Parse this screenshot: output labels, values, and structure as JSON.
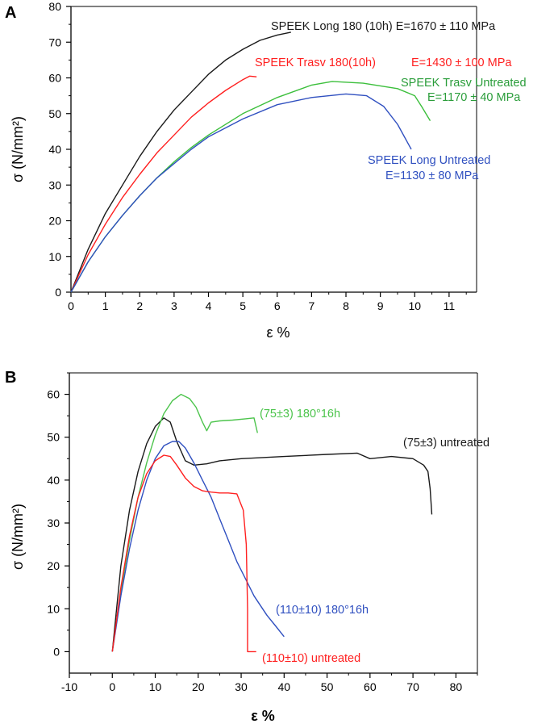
{
  "chart_data": [
    {
      "panel": "A",
      "type": "line",
      "xlabel": "ε %",
      "ylabel": "σ (N/mm²)",
      "xlim": [
        0,
        11.8
      ],
      "ylim": [
        0,
        80
      ],
      "xticks": [
        "0",
        "1",
        "2",
        "3",
        "4",
        "5",
        "6",
        "7",
        "8",
        "9",
        "10",
        "11"
      ],
      "yticks": [
        "0",
        "10",
        "20",
        "30",
        "40",
        "50",
        "60",
        "70",
        "80"
      ],
      "series": [
        {
          "name": "SPEEK Long 180 (10h)",
          "color": "#1a1a1a",
          "x": [
            0,
            0.5,
            1,
            1.5,
            2,
            2.5,
            3,
            3.5,
            4,
            4.5,
            5,
            5.5,
            6,
            6.4
          ],
          "y": [
            0,
            12,
            22,
            30,
            38,
            45,
            51,
            56,
            61,
            65,
            68,
            70.5,
            72,
            72.8
          ]
        },
        {
          "name": "SPEEK Trasv 180(10h)",
          "color": "#ff2020",
          "x": [
            0,
            0.5,
            1,
            1.5,
            2,
            2.5,
            3,
            3.5,
            4,
            4.5,
            5,
            5.2,
            5.4
          ],
          "y": [
            0,
            10.5,
            19,
            26.5,
            33,
            39,
            44,
            49,
            53,
            56.5,
            59.5,
            60.5,
            60.3
          ]
        },
        {
          "name": "SPEEK Trasv Untreated",
          "color": "#3cbf3c",
          "x": [
            0,
            0.5,
            1,
            1.5,
            2,
            2.5,
            3,
            3.5,
            4,
            5,
            6,
            7,
            7.6,
            8.5,
            9.5,
            10,
            10.2,
            10.45
          ],
          "y": [
            0,
            8.5,
            15.5,
            21.5,
            27,
            32,
            36.5,
            40.5,
            44,
            50,
            54.5,
            58,
            59,
            58.5,
            57,
            55,
            52,
            48
          ]
        },
        {
          "name": "SPEEK Long Untreated",
          "color": "#3050c0",
          "x": [
            0,
            0.5,
            1,
            1.5,
            2,
            2.5,
            3,
            3.5,
            4,
            5,
            6,
            7,
            8,
            8.6,
            9.1,
            9.5,
            9.9
          ],
          "y": [
            0,
            8.5,
            15.5,
            21.5,
            27,
            32,
            36,
            40,
            43.5,
            48.5,
            52.5,
            54.5,
            55.5,
            55,
            52,
            47,
            40
          ]
        }
      ],
      "annotations": [
        {
          "name": "Long 180",
          "text": "SPEEK Long 180 (10h) E=1670 ± 110 MPa",
          "color": "#1a1a1a"
        },
        {
          "name": "Trasv 180 title",
          "text": "SPEEK Trasv 180(10h)",
          "color": "#ff2020"
        },
        {
          "name": "Trasv 180 modulus",
          "text": "E=1430 ± 100 MPa",
          "color": "#ff2020"
        },
        {
          "name": "Trasv untreated title",
          "text": "SPEEK Trasv Untreated",
          "color": "#2a9d3a"
        },
        {
          "name": "Trasv untreated modulus",
          "text": "E=1170 ± 40 MPa",
          "color": "#2a9d3a"
        },
        {
          "name": "Long untreated title",
          "text": "SPEEK Long Untreated",
          "color": "#3050c0"
        },
        {
          "name": "Long untreated modulus",
          "text": "E=1130 ± 80 MPa",
          "color": "#3050c0"
        }
      ]
    },
    {
      "panel": "B",
      "type": "line",
      "xlabel": "ε %",
      "ylabel": "σ (N/mm²)",
      "xlim": [
        -10,
        85
      ],
      "ylim": [
        -5,
        65
      ],
      "xticks": [
        "-10",
        "0",
        "10",
        "20",
        "30",
        "40",
        "50",
        "60",
        "70",
        "80"
      ],
      "yticks": [
        "0",
        "10",
        "20",
        "30",
        "40",
        "50",
        "60"
      ],
      "series": [
        {
          "name": "(75±3) untreated",
          "color": "#1a1a1a",
          "x": [
            0,
            2,
            4,
            6,
            8,
            10,
            12,
            13.5,
            15,
            17,
            19,
            22,
            25,
            30,
            40,
            50,
            57,
            60,
            65,
            70,
            72.5,
            73.5,
            74,
            74.4
          ],
          "y": [
            0,
            20,
            33,
            42,
            48.5,
            52.5,
            54.5,
            53.5,
            49,
            44.5,
            43.5,
            43.8,
            44.5,
            45,
            45.5,
            46,
            46.3,
            45,
            45.5,
            45,
            43.5,
            42,
            38,
            32
          ]
        },
        {
          "name": "(75±3) 180°16h",
          "color": "#4cc44c",
          "x": [
            0,
            2,
            4,
            6,
            8,
            10,
            12,
            14,
            16,
            18,
            19.5,
            21,
            22,
            23,
            25,
            28,
            31,
            33,
            33.8
          ],
          "y": [
            0,
            14,
            26,
            36,
            44,
            50.5,
            55.5,
            58.5,
            60,
            59,
            57,
            53.5,
            51.5,
            53.5,
            53.8,
            54,
            54.3,
            54.5,
            51
          ]
        },
        {
          "name": "(110±10) 180°16h",
          "color": "#3050c0",
          "x": [
            0,
            2,
            4,
            6,
            8,
            10,
            12,
            14,
            15.5,
            17,
            19,
            21,
            23,
            25,
            27,
            29,
            31,
            33,
            36,
            38,
            40
          ],
          "y": [
            0,
            13,
            24,
            33,
            40,
            45,
            48,
            49,
            49,
            47.5,
            44,
            40,
            36,
            31,
            26,
            21,
            17,
            13,
            8.5,
            6,
            3.5
          ]
        },
        {
          "name": "(110±10) untreated",
          "color": "#ff2020",
          "x": [
            0,
            2,
            4,
            6,
            8,
            10,
            12,
            13.5,
            15,
            17,
            19,
            21,
            23,
            25,
            27,
            29,
            30.5,
            31.2,
            31.5,
            31.5,
            32.5,
            33.5
          ],
          "y": [
            0,
            15,
            27,
            36,
            41.5,
            44.5,
            45.8,
            45.5,
            43.5,
            40.5,
            38.5,
            37.5,
            37.2,
            37,
            37,
            36.8,
            33,
            25,
            10,
            0,
            0,
            0
          ]
        }
      ],
      "annotations": [
        {
          "name": "75 treated",
          "text": "(75±3) 180°16h",
          "color": "#4cc44c"
        },
        {
          "name": "75 untreated",
          "text": "(75±3) untreated",
          "color": "#1a1a1a"
        },
        {
          "name": "110 treated",
          "text": "(110±10) 180°16h",
          "color": "#3050c0"
        },
        {
          "name": "110 untreated",
          "text": "(110±10) untreated",
          "color": "#ff2020"
        }
      ]
    }
  ]
}
